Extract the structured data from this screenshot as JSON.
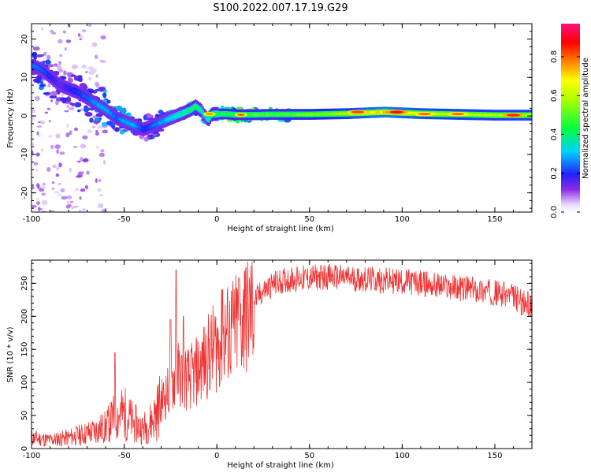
{
  "title": "S100.2022.007.17.19.G29",
  "chart_data": [
    {
      "type": "heatmap",
      "xlabel": "Height of straight line (km)",
      "ylabel": "Frequency (Hz)",
      "xlim": [
        -100,
        170
      ],
      "ylim": [
        -25,
        24
      ],
      "x_ticks": [
        -100,
        -50,
        0,
        50,
        100,
        150
      ],
      "y_ticks": [
        -20,
        -10,
        0,
        10,
        20
      ],
      "ridge": {
        "x": [
          -99,
          -95,
          -90,
          -85,
          -80,
          -75,
          -70,
          -65,
          -60,
          -55,
          -50,
          -45,
          -40,
          -35,
          -30,
          -25,
          -20,
          -15,
          -12,
          -9,
          -7,
          -5,
          -3,
          0,
          5,
          10,
          20,
          30,
          40,
          50,
          60,
          70,
          80,
          90,
          100,
          110,
          120,
          130,
          140,
          150,
          160,
          170
        ],
        "freq": [
          13,
          12,
          10,
          8,
          7,
          6,
          4.5,
          3,
          1.5,
          -0.5,
          -1.5,
          -2.5,
          -3.5,
          -2.5,
          -1.5,
          -0.5,
          0.5,
          1.5,
          2.5,
          1.5,
          0,
          -1,
          0.5,
          0.5,
          0.5,
          0.3,
          0.3,
          0.4,
          0.4,
          0.4,
          0.5,
          0.6,
          0.8,
          1,
          0.8,
          0.6,
          0.5,
          0.4,
          0.3,
          0.2,
          0.2,
          0.2
        ],
        "amp": [
          0.25,
          0.25,
          0.2,
          0.15,
          0.2,
          0.22,
          0.25,
          0.3,
          0.3,
          0.25,
          0.3,
          0.3,
          0.2,
          0.25,
          0.3,
          0.35,
          0.4,
          0.42,
          0.45,
          0.4,
          0.35,
          0.4,
          0.45,
          0.45,
          0.48,
          0.5,
          0.5,
          0.5,
          0.52,
          0.55,
          0.58,
          0.62,
          0.7,
          0.75,
          0.7,
          0.66,
          0.64,
          0.62,
          0.62,
          0.62,
          0.63,
          0.63
        ]
      },
      "hotspots": [
        {
          "x": 76,
          "freq": 1.0,
          "amp": 0.85
        },
        {
          "x": 97,
          "freq": 1.0,
          "amp": 0.9
        },
        {
          "x": 112,
          "freq": 0.5,
          "amp": 0.82
        },
        {
          "x": 130,
          "freq": 0.5,
          "amp": 0.82
        },
        {
          "x": 160,
          "freq": 0.2,
          "amp": 0.88
        },
        {
          "x": 13,
          "freq": 0.3,
          "amp": 0.82
        },
        {
          "x": -4,
          "freq": 0.5,
          "amp": 0.78
        }
      ],
      "colorbar": {
        "label": "Normalized spectral amplitude",
        "ticks": [
          "0.0",
          "0.2",
          "0.4",
          "0.6",
          "0.8"
        ],
        "range": [
          0,
          0.97
        ]
      }
    },
    {
      "type": "line",
      "xlabel": "Height of straight line (km)",
      "ylabel": "SNR (10 * v/v)",
      "xlim": [
        -100,
        170
      ],
      "ylim": [
        0,
        285
      ],
      "x_ticks": [
        -100,
        -50,
        0,
        50,
        100,
        150
      ],
      "y_ticks": [
        0,
        50,
        100,
        150,
        200,
        250
      ],
      "color": "#ee3333",
      "envelope": {
        "x": [
          -100,
          -90,
          -80,
          -70,
          -60,
          -55,
          -50,
          -45,
          -40,
          -35,
          -30,
          -25,
          -22,
          -20,
          -15,
          -10,
          -5,
          0,
          5,
          10,
          15,
          20,
          25,
          30,
          35,
          40,
          50,
          60,
          70,
          80,
          90,
          100,
          110,
          120,
          130,
          140,
          150,
          160,
          165,
          170
        ],
        "snr": [
          18,
          14,
          18,
          25,
          35,
          52,
          58,
          42,
          32,
          45,
          75,
          95,
          120,
          115,
          110,
          125,
          145,
          165,
          180,
          190,
          205,
          225,
          240,
          250,
          255,
          258,
          260,
          262,
          260,
          258,
          256,
          255,
          252,
          248,
          245,
          242,
          238,
          232,
          222,
          218
        ]
      },
      "spikes": [
        {
          "x": -22,
          "snr": 270
        },
        {
          "x": 15,
          "snr": 268
        },
        {
          "x": 12,
          "snr": 258
        },
        {
          "x": -55,
          "snr": 145
        },
        {
          "x": -25,
          "snr": 195
        },
        {
          "x": -18,
          "snr": 200
        },
        {
          "x": 3,
          "snr": 240
        }
      ]
    }
  ]
}
